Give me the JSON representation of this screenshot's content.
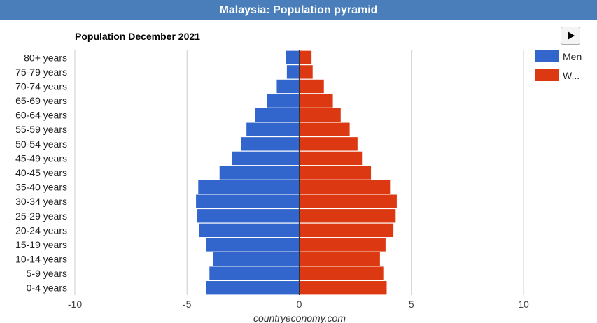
{
  "header": {
    "title": "Malaysia: Population pyramid"
  },
  "controls": {
    "play_icon": "play-icon"
  },
  "footer": {
    "source": "countryeconomy.com"
  },
  "colors": {
    "men": "#3366cc",
    "women": "#dc3912",
    "header": "#4a7ebb",
    "grid": "#cccccc",
    "zero": "#333333"
  },
  "chart_data": {
    "type": "bar",
    "orientation": "horizontal",
    "title": "Population December 2021",
    "categories": [
      "80+ years",
      "75-79 years",
      "70-74 years",
      "65-69 years",
      "60-64 years",
      "55-59 years",
      "50-54 years",
      "45-49 years",
      "40-45 years",
      "35-40 years",
      "30-34 years",
      "25-29 years",
      "20-24 years",
      "15-19 years",
      "10-14 years",
      "5-9 years",
      "0-4 years"
    ],
    "series": [
      {
        "name": "Men",
        "legend_label": "Men",
        "values": [
          -0.6,
          -0.55,
          -1.0,
          -1.45,
          -1.95,
          -2.35,
          -2.6,
          -3.0,
          -3.55,
          -4.5,
          -4.6,
          -4.55,
          -4.45,
          -4.15,
          -3.85,
          -4.0,
          -4.15
        ]
      },
      {
        "name": "Women",
        "legend_label": "W...",
        "values": [
          0.55,
          0.6,
          1.1,
          1.5,
          1.85,
          2.25,
          2.6,
          2.8,
          3.2,
          4.05,
          4.35,
          4.3,
          4.2,
          3.85,
          3.6,
          3.75,
          3.9
        ]
      }
    ],
    "xlim": [
      -10,
      10
    ],
    "xticks": [
      -10,
      -5,
      0,
      5,
      10
    ],
    "xtick_labels": [
      "-10",
      "-5",
      "0",
      "5",
      "10"
    ],
    "grid": true,
    "legend_position": "right"
  }
}
